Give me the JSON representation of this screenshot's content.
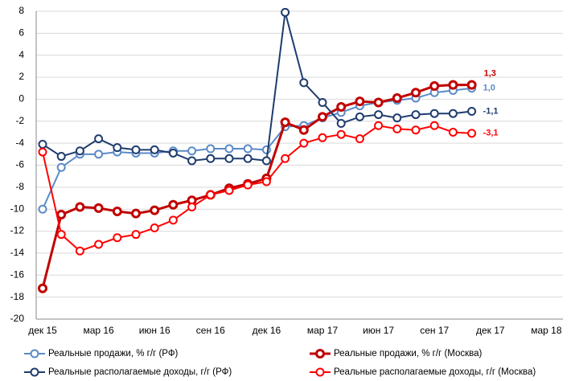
{
  "chart_data": {
    "type": "line",
    "categories": [
      "дек 15",
      null,
      null,
      "мар 16",
      null,
      null,
      "июн 16",
      null,
      null,
      "сен 16",
      null,
      null,
      "дек 16",
      null,
      null,
      "мар 17",
      null,
      null,
      "июн 17",
      null,
      null,
      "сен 17",
      null,
      null,
      "дек 17",
      null,
      null,
      "мар 18"
    ],
    "ylim": [
      -20,
      8
    ],
    "yticks": [
      -20,
      -18,
      -16,
      -14,
      -12,
      -10,
      -8,
      -6,
      -4,
      -2,
      0,
      2,
      4,
      6,
      8
    ],
    "grid": true,
    "series": [
      {
        "name": "Реальные продажи, % г/г (РФ)",
        "color": "#5b8ac6",
        "values": [
          -10,
          -6.2,
          -5.0,
          -5.0,
          -4.8,
          -4.9,
          -4.9,
          -4.7,
          -4.7,
          -4.5,
          -4.5,
          -4.5,
          -4.6,
          -2.5,
          -2.4,
          -1.7,
          -1.2,
          -0.6,
          -0.3,
          -0.1,
          0.1,
          0.6,
          0.8,
          1.0,
          null,
          null,
          null,
          null
        ],
        "value_labels": [
          null,
          null,
          null,
          null,
          null,
          null,
          null,
          null,
          null,
          null,
          null,
          null,
          null,
          null,
          null,
          null,
          null,
          null,
          null,
          null,
          null,
          null,
          null,
          "1,0",
          null,
          null,
          null,
          null
        ]
      },
      {
        "name": "Реальные продажи, % г/г (Москва)",
        "color": "#c00000",
        "values": [
          -17.2,
          -10.5,
          -9.8,
          -9.9,
          -10.2,
          -10.4,
          -10.1,
          -9.6,
          -9.2,
          -8.7,
          -8.1,
          -7.7,
          -7.2,
          -2.1,
          -2.8,
          -1.6,
          -0.7,
          -0.2,
          -0.3,
          0.1,
          0.6,
          1.2,
          1.3,
          1.3,
          null,
          null,
          null,
          null
        ],
        "value_labels": [
          null,
          null,
          null,
          null,
          null,
          null,
          null,
          null,
          null,
          null,
          null,
          null,
          null,
          null,
          null,
          null,
          null,
          null,
          null,
          null,
          null,
          null,
          null,
          "1,3",
          null,
          null,
          null,
          null
        ]
      },
      {
        "name": "Реальные располагаемые доходы, г/г (РФ)",
        "color": "#1f3c6e",
        "values": [
          -4.1,
          -5.2,
          -4.7,
          -3.6,
          -4.4,
          -4.6,
          -4.6,
          -4.9,
          -5.6,
          -5.4,
          -5.4,
          -5.4,
          -5.6,
          7.9,
          1.5,
          -0.3,
          -2.2,
          -1.6,
          -1.4,
          -1.7,
          -1.4,
          -1.3,
          -1.3,
          -1.1,
          null,
          null,
          null,
          null
        ],
        "value_labels": [
          null,
          null,
          null,
          null,
          null,
          null,
          null,
          null,
          null,
          null,
          null,
          null,
          null,
          null,
          null,
          null,
          null,
          null,
          null,
          null,
          null,
          null,
          null,
          "-1,1",
          null,
          null,
          null,
          null
        ]
      },
      {
        "name": "Реальные располагаемые доходы, г/г (Москва)",
        "color": "#ff0000",
        "values": [
          -4.8,
          -12.3,
          -13.8,
          -13.2,
          -12.6,
          -12.3,
          -11.7,
          -11.0,
          -9.8,
          -8.7,
          -8.3,
          -7.8,
          -7.5,
          -5.4,
          -4.0,
          -3.5,
          -3.2,
          -3.6,
          -2.4,
          -2.7,
          -2.8,
          -2.4,
          -3.0,
          -3.1,
          null,
          null,
          null,
          null
        ],
        "value_labels": [
          null,
          null,
          null,
          null,
          null,
          null,
          null,
          null,
          null,
          null,
          null,
          null,
          null,
          null,
          null,
          null,
          null,
          null,
          null,
          null,
          null,
          null,
          null,
          "-3,1",
          null,
          null,
          null,
          null
        ]
      }
    ]
  }
}
